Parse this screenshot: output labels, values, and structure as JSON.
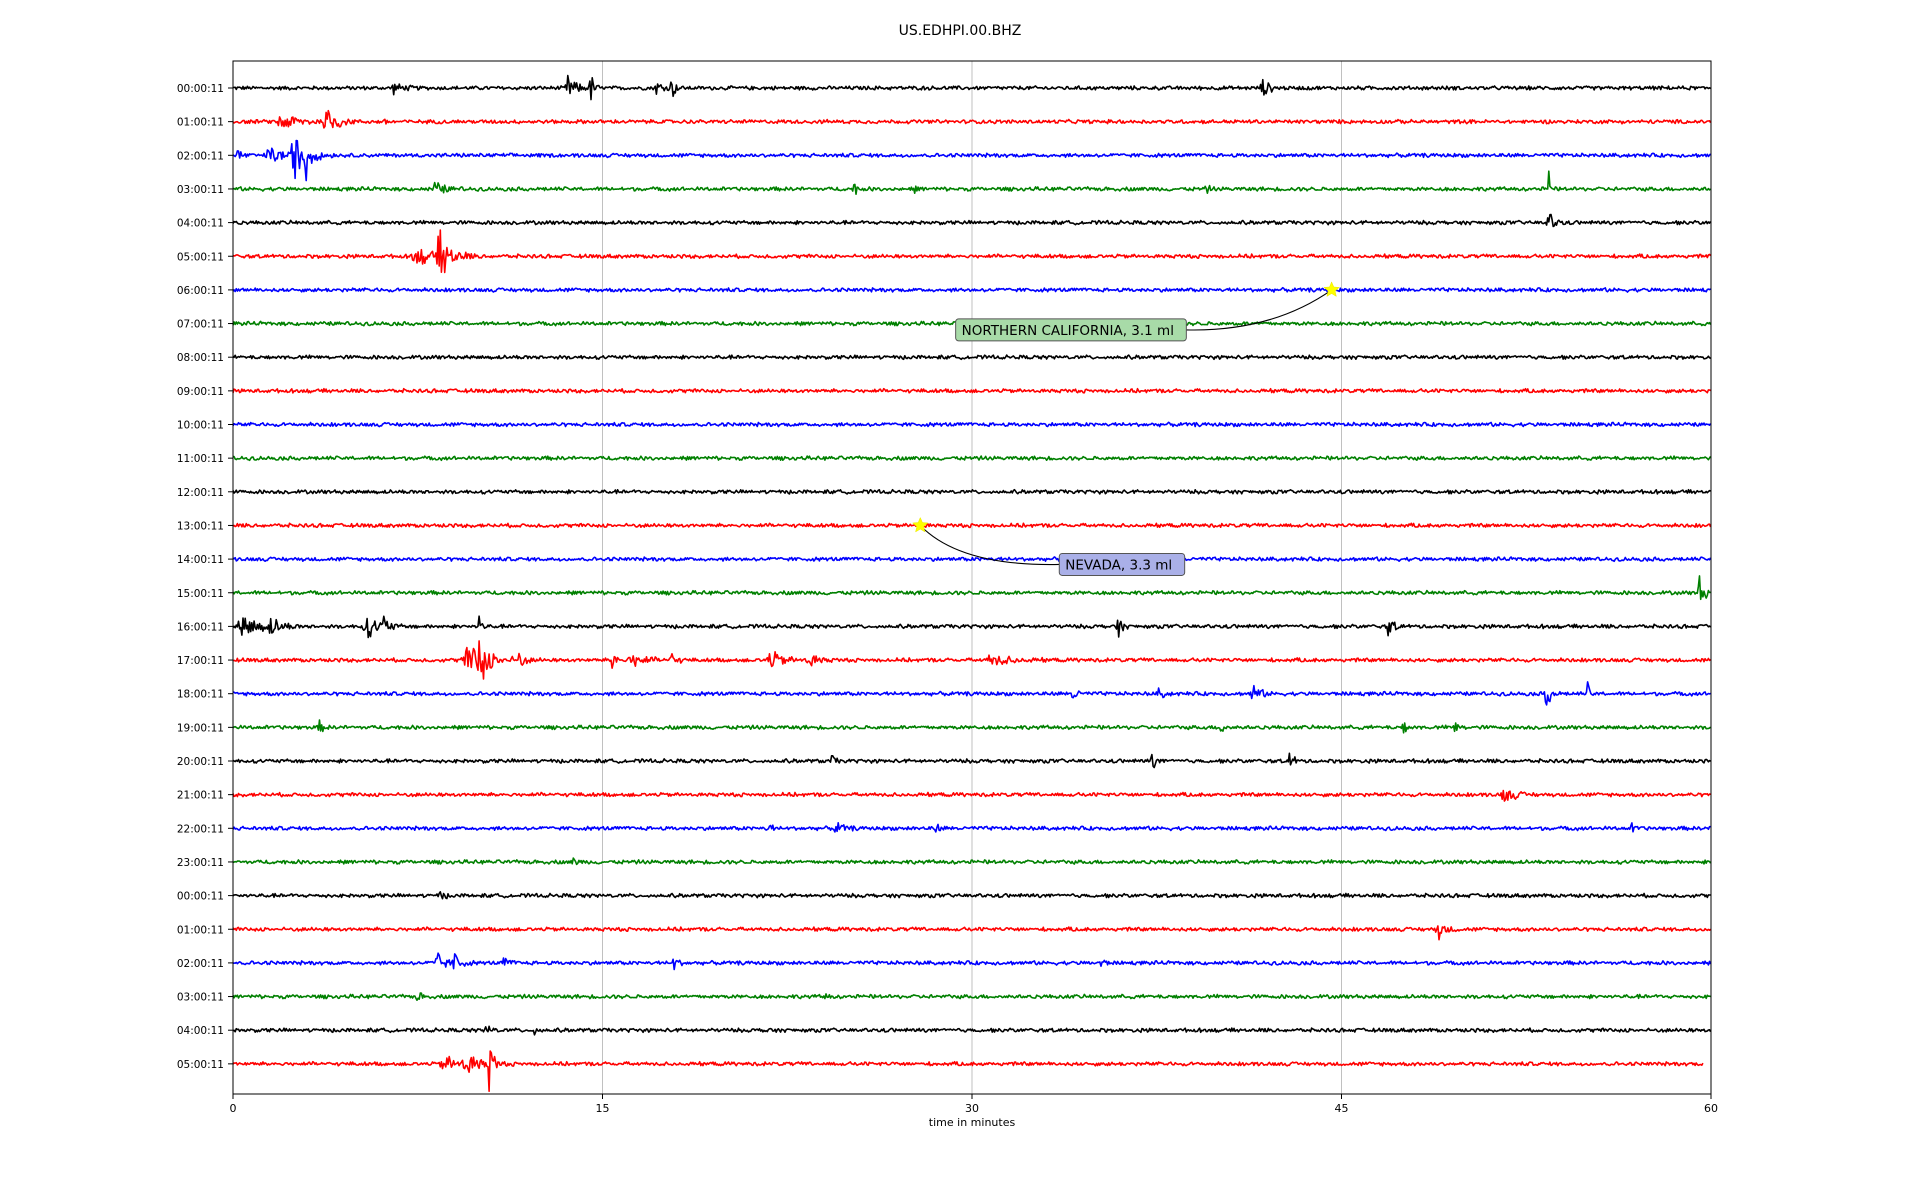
{
  "chart_data": {
    "type": "line",
    "title": "US.EDHPI.00.BHZ",
    "xlabel": "time in minutes",
    "ylabel": "",
    "xlim": [
      0,
      60
    ],
    "x_ticks": [
      0,
      15,
      30,
      45,
      60
    ],
    "x_grid": true,
    "colors": [
      "#000000",
      "#ff0000",
      "#0000ff",
      "#008000"
    ],
    "row_labels": [
      "00:00:11",
      "01:00:11",
      "02:00:11",
      "03:00:11",
      "04:00:11",
      "05:00:11",
      "06:00:11",
      "07:00:11",
      "08:00:11",
      "09:00:11",
      "10:00:11",
      "11:00:11",
      "12:00:11",
      "13:00:11",
      "14:00:11",
      "15:00:11",
      "16:00:11",
      "17:00:11",
      "18:00:11",
      "19:00:11",
      "20:00:11",
      "21:00:11",
      "22:00:11",
      "23:00:11",
      "00:00:11",
      "01:00:11",
      "02:00:11",
      "03:00:11",
      "04:00:11",
      "05:00:11"
    ],
    "last_row_end_minute": 59.7,
    "bursts": [
      {
        "row": 0,
        "t": 6.5,
        "amp": 0.25,
        "dur": 0.8
      },
      {
        "row": 0,
        "t": 13.6,
        "amp": 0.7,
        "dur": 0.6
      },
      {
        "row": 0,
        "t": 14.5,
        "amp": 0.9,
        "dur": 0.3
      },
      {
        "row": 0,
        "t": 17.2,
        "amp": 0.4,
        "dur": 0.6
      },
      {
        "row": 0,
        "t": 17.8,
        "amp": 0.6,
        "dur": 0.3
      },
      {
        "row": 0,
        "t": 41.8,
        "amp": 0.4,
        "dur": 0.6
      },
      {
        "row": 1,
        "t": 2.0,
        "amp": 0.4,
        "dur": 1.5
      },
      {
        "row": 1,
        "t": 3.8,
        "amp": 0.9,
        "dur": 0.8
      },
      {
        "row": 1,
        "t": 6.2,
        "amp": 0.2,
        "dur": 0.3
      },
      {
        "row": 2,
        "t": 0.2,
        "amp": 0.5,
        "dur": 0.3
      },
      {
        "row": 2,
        "t": 1.5,
        "amp": 0.5,
        "dur": 1.0
      },
      {
        "row": 2,
        "t": 2.5,
        "amp": 1.2,
        "dur": 1.0
      },
      {
        "row": 2,
        "t": 2.9,
        "amp": 2.3,
        "dur": 0.2
      },
      {
        "row": 3,
        "t": 8.2,
        "amp": 0.35,
        "dur": 0.8
      },
      {
        "row": 3,
        "t": 25.2,
        "amp": 0.35,
        "dur": 0.3
      },
      {
        "row": 3,
        "t": 27.6,
        "amp": 0.2,
        "dur": 0.3
      },
      {
        "row": 3,
        "t": 39.5,
        "amp": 0.2,
        "dur": 0.3
      },
      {
        "row": 3,
        "t": 53.4,
        "amp": 1.4,
        "dur": 0.15
      },
      {
        "row": 4,
        "t": 53.4,
        "amp": 0.6,
        "dur": 0.5
      },
      {
        "row": 5,
        "t": 7.5,
        "amp": 0.4,
        "dur": 1.8
      },
      {
        "row": 5,
        "t": 8.4,
        "amp": 1.3,
        "dur": 0.8
      },
      {
        "row": 13,
        "t": 27.8,
        "amp": 0.15,
        "dur": 0.4
      },
      {
        "row": 15,
        "t": 59.5,
        "amp": 1.0,
        "dur": 0.4
      },
      {
        "row": 16,
        "t": 0.4,
        "amp": 0.6,
        "dur": 1.4
      },
      {
        "row": 16,
        "t": 1.5,
        "amp": 0.4,
        "dur": 0.8
      },
      {
        "row": 16,
        "t": 5.4,
        "amp": 0.6,
        "dur": 1.0
      },
      {
        "row": 16,
        "t": 6.1,
        "amp": 0.5,
        "dur": 0.4
      },
      {
        "row": 16,
        "t": 10.0,
        "amp": 1.0,
        "dur": 0.2
      },
      {
        "row": 16,
        "t": 35.9,
        "amp": 0.7,
        "dur": 0.3
      },
      {
        "row": 16,
        "t": 46.9,
        "amp": 0.6,
        "dur": 0.4
      },
      {
        "row": 17,
        "t": 9.6,
        "amp": 0.8,
        "dur": 1.8
      },
      {
        "row": 17,
        "t": 10.0,
        "amp": 1.5,
        "dur": 0.4
      },
      {
        "row": 17,
        "t": 11.6,
        "amp": 0.5,
        "dur": 0.3
      },
      {
        "row": 17,
        "t": 15.4,
        "amp": 0.9,
        "dur": 0.3
      },
      {
        "row": 17,
        "t": 16.2,
        "amp": 0.4,
        "dur": 1.0
      },
      {
        "row": 17,
        "t": 17.8,
        "amp": 0.4,
        "dur": 0.4
      },
      {
        "row": 17,
        "t": 21.8,
        "amp": 0.5,
        "dur": 1.0
      },
      {
        "row": 17,
        "t": 23.4,
        "amp": 0.4,
        "dur": 0.7
      },
      {
        "row": 17,
        "t": 30.8,
        "amp": 0.3,
        "dur": 1.5
      },
      {
        "row": 18,
        "t": 34.1,
        "amp": 0.5,
        "dur": 0.3
      },
      {
        "row": 18,
        "t": 37.6,
        "amp": 0.3,
        "dur": 0.4
      },
      {
        "row": 18,
        "t": 41.4,
        "amp": 0.6,
        "dur": 0.5
      },
      {
        "row": 18,
        "t": 53.3,
        "amp": 0.8,
        "dur": 0.4
      },
      {
        "row": 18,
        "t": 55.0,
        "amp": 0.7,
        "dur": 0.2
      },
      {
        "row": 19,
        "t": 3.5,
        "amp": 0.3,
        "dur": 0.3
      },
      {
        "row": 19,
        "t": 40.1,
        "amp": 0.4,
        "dur": 0.3
      },
      {
        "row": 19,
        "t": 47.5,
        "amp": 0.4,
        "dur": 0.3
      },
      {
        "row": 19,
        "t": 49.6,
        "amp": 0.4,
        "dur": 0.3
      },
      {
        "row": 20,
        "t": 37.3,
        "amp": 0.5,
        "dur": 0.3
      },
      {
        "row": 20,
        "t": 42.9,
        "amp": 0.6,
        "dur": 0.3
      },
      {
        "row": 20,
        "t": 24.3,
        "amp": 0.3,
        "dur": 0.3
      },
      {
        "row": 21,
        "t": 51.6,
        "amp": 0.4,
        "dur": 0.8
      },
      {
        "row": 22,
        "t": 21.7,
        "amp": 0.4,
        "dur": 0.3
      },
      {
        "row": 22,
        "t": 24.5,
        "amp": 0.3,
        "dur": 0.6
      },
      {
        "row": 22,
        "t": 28.5,
        "amp": 0.3,
        "dur": 0.3
      },
      {
        "row": 22,
        "t": 56.8,
        "amp": 0.3,
        "dur": 0.3
      },
      {
        "row": 23,
        "t": 13.8,
        "amp": 0.2,
        "dur": 0.3
      },
      {
        "row": 24,
        "t": 8.4,
        "amp": 0.3,
        "dur": 0.3
      },
      {
        "row": 25,
        "t": 48.9,
        "amp": 0.5,
        "dur": 0.6
      },
      {
        "row": 26,
        "t": 8.3,
        "amp": 0.7,
        "dur": 0.5
      },
      {
        "row": 26,
        "t": 9.0,
        "amp": 0.6,
        "dur": 0.5
      },
      {
        "row": 26,
        "t": 11.0,
        "amp": 0.3,
        "dur": 0.4
      },
      {
        "row": 26,
        "t": 17.9,
        "amp": 0.5,
        "dur": 0.3
      },
      {
        "row": 26,
        "t": 35.2,
        "amp": 0.3,
        "dur": 0.3
      },
      {
        "row": 27,
        "t": 7.5,
        "amp": 0.3,
        "dur": 0.3
      },
      {
        "row": 27,
        "t": 24.0,
        "amp": 0.2,
        "dur": 0.3
      },
      {
        "row": 28,
        "t": 12.2,
        "amp": 0.3,
        "dur": 0.3
      },
      {
        "row": 28,
        "t": 10.3,
        "amp": 0.5,
        "dur": 0.3
      },
      {
        "row": 28,
        "t": 21.6,
        "amp": 0.2,
        "dur": 0.3
      },
      {
        "row": 29,
        "t": 8.6,
        "amp": 0.4,
        "dur": 1.2
      },
      {
        "row": 29,
        "t": 9.5,
        "amp": 0.5,
        "dur": 1.2
      },
      {
        "row": 29,
        "t": 10.4,
        "amp": 1.5,
        "dur": 0.3
      }
    ],
    "annotations": [
      {
        "row": 6,
        "t": 44.6,
        "label": "NORTHERN CALIFORNIA, 3.1 ml",
        "box_fill": "#a8dba8"
      },
      {
        "row": 13,
        "t": 27.9,
        "label": "NEVADA, 3.3 ml",
        "box_fill": "#aab0e8"
      }
    ]
  }
}
